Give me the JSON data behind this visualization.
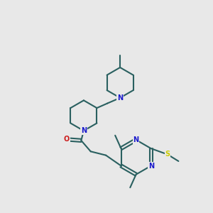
{
  "bg_color": "#e8e8e8",
  "bond_color": "#2a6060",
  "N_color": "#1a1acc",
  "O_color": "#cc1a1a",
  "S_color": "#cccc00",
  "line_width": 1.5,
  "font_size": 7.0,
  "figsize": [
    3.0,
    3.0
  ],
  "dpi": 100,
  "xlim": [
    0,
    10
  ],
  "ylim": [
    0,
    10
  ]
}
